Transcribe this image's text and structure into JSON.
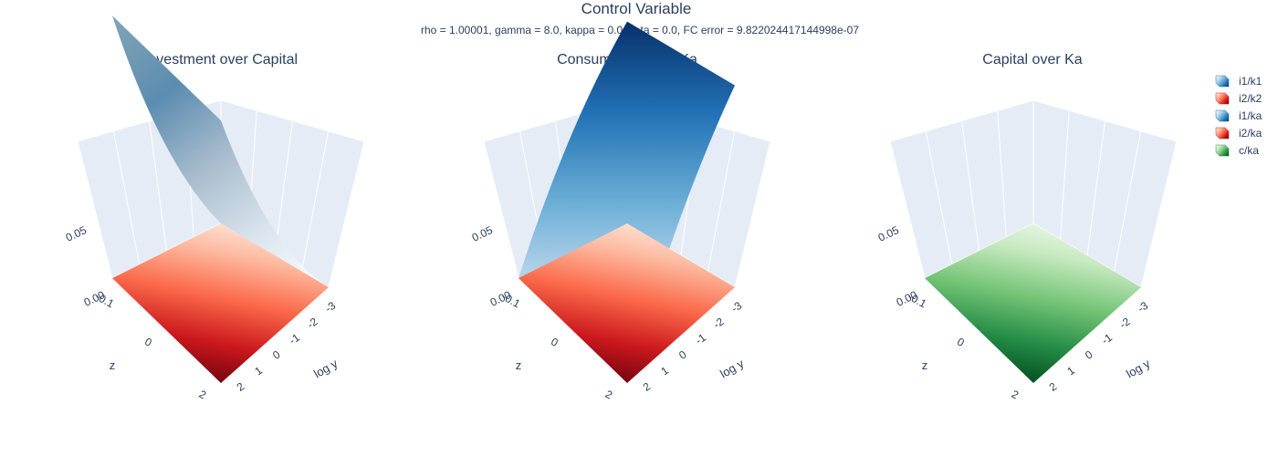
{
  "title": "Control Variable",
  "subtitle": "rho = 1.00001, gamma = 8.0, kappa = 0.0, zeta = 0.0, FC error = 9.822024417144998e-07",
  "colors": {
    "pane": "#e5ecf6",
    "grid": "#ffffff",
    "text": "#2a3f5f",
    "blues": [
      "#ffffff",
      "#c7dcef",
      "#6baed6",
      "#2171b5",
      "#08306b"
    ],
    "reds": [
      "#fff5f0",
      "#fcbba1",
      "#fb6a4a",
      "#cb181d",
      "#67000d"
    ],
    "greens": [
      "#f7fcf5",
      "#c7e9c0",
      "#74c476",
      "#238b45",
      "#00441b"
    ]
  },
  "legend": {
    "items": [
      {
        "label": "i1/k1",
        "colorscale": "blues"
      },
      {
        "label": "i2/k2",
        "colorscale": "reds"
      },
      {
        "label": "i1/ka",
        "colorscale": "blues"
      },
      {
        "label": "i2/ka",
        "colorscale": "reds"
      },
      {
        "label": "c/ka",
        "colorscale": "greens"
      }
    ]
  },
  "chart_data": [
    {
      "type": "surface3d",
      "title": "Investment over Capital",
      "xlabel": "log y",
      "ylabel": "z",
      "ztick": "0.05",
      "zlim": [
        0,
        0.07
      ],
      "series": [
        {
          "name": "i1/k1",
          "colorscale": "blues",
          "z_at_logy_min": 0.065,
          "z_at_logy_max": 0.0
        },
        {
          "name": "i2/k2",
          "colorscale": "reds",
          "z_at_logy_min": 0.0,
          "z_at_logy_max": 0.0
        }
      ]
    },
    {
      "type": "surface3d",
      "title": "Consumption over Ka",
      "xlabel": "log y",
      "ylabel": "z",
      "ztick": "0.05",
      "zlim": [
        0,
        0.07
      ],
      "series": [
        {
          "name": "i1/ka",
          "colorscale": "blues",
          "z_at_logy_min": 0.0,
          "z_at_logy_max": 0.05
        },
        {
          "name": "i2/ka",
          "colorscale": "reds",
          "z_at_logy_min": 0.0,
          "z_at_logy_max": 0.0
        }
      ]
    },
    {
      "type": "surface3d",
      "title": "Capital over Ka",
      "xlabel": "log y",
      "ylabel": "z",
      "ztick": "0.05",
      "zlim": [
        0,
        0.07
      ],
      "series": [
        {
          "name": "c/ka",
          "colorscale": "greens",
          "z_at_logy_min": 0.0,
          "z_at_logy_max": 0.0
        }
      ]
    }
  ],
  "logy_ticks": [
    "-3",
    "-2",
    "-1",
    "0",
    "1",
    "2"
  ],
  "z_ticks": [
    "-0.1",
    "0",
    "2"
  ],
  "zero_tick": "0.00"
}
